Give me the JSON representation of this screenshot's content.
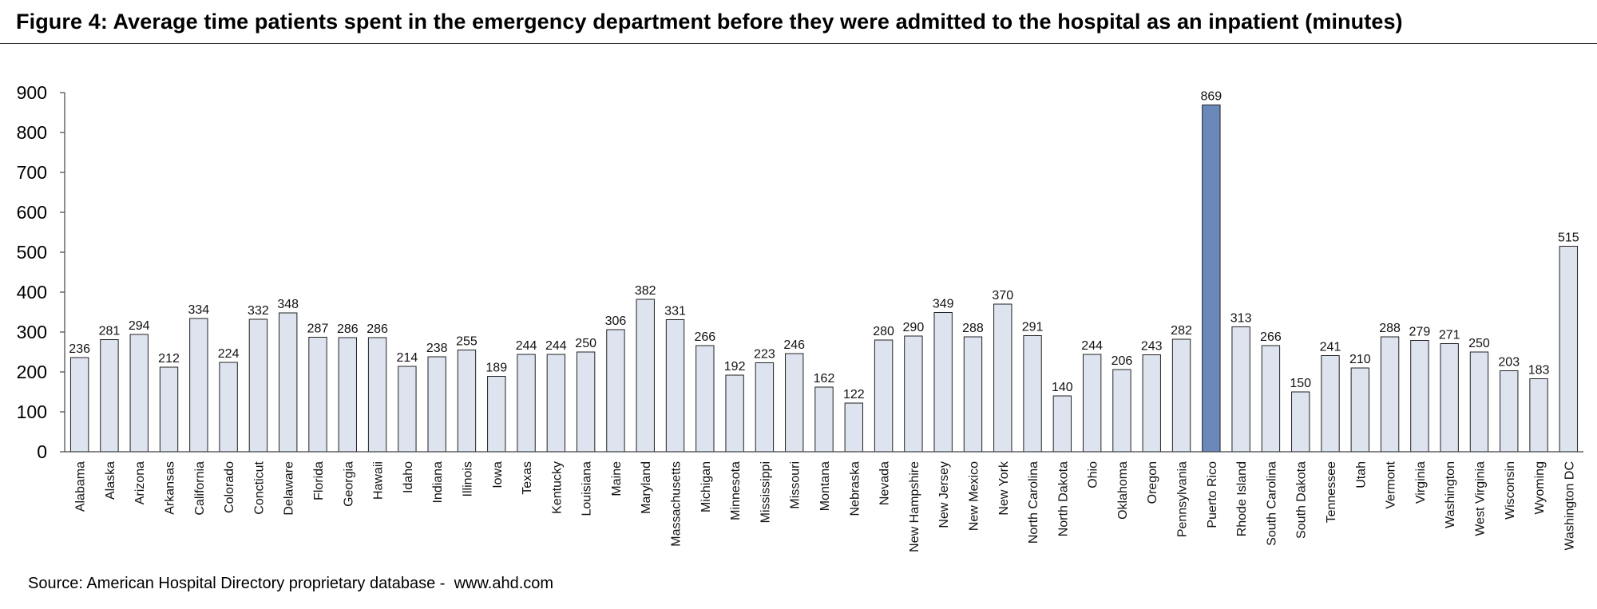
{
  "figure": {
    "title": "Figure 4: Average time patients spent in the emergency department before they were admitted to the hospital as an inpatient (minutes)",
    "source": "Source: American Hospital Directory proprietary database -  www.ahd.com"
  },
  "colors": {
    "bar_fill": "#dde3ef",
    "bar_highlight": "#6b88bb",
    "bar_stroke": "#222222",
    "axis": "#444444"
  },
  "chart_data": {
    "type": "bar",
    "title": "Figure 4: Average time patients spent in the emergency department before they were admitted to the hospital as an inpatient (minutes)",
    "xlabel": "",
    "ylabel": "",
    "ylim": [
      0,
      900
    ],
    "yticks": [
      0,
      100,
      200,
      300,
      400,
      500,
      600,
      700,
      800,
      900
    ],
    "grid": false,
    "legend": "none",
    "highlight_category": "Puerto Rico",
    "categories": [
      "Alabama",
      "Alaska",
      "Arizona",
      "Arkansas",
      "California",
      "Colorado",
      "Concticut",
      "Delaware",
      "Florida",
      "Georgia",
      "Hawaii",
      "Idaho",
      "Indiana",
      "Illinois",
      "Iowa",
      "Texas",
      "Kentucky",
      "Louisiana",
      "Maine",
      "Maryland",
      "Massachusetts",
      "Michigan",
      "Minnesota",
      "Mississippi",
      "Missouri",
      "Montana",
      "Nebraska",
      "Nevada",
      "New Hampshire",
      "New Jersey",
      "New Mexico",
      "New York",
      "North Carolina",
      "North Dakota",
      "Ohio",
      "Oklahoma",
      "Oregon",
      "Pennsylvania",
      "Puerto Rico",
      "Rhode Island",
      "South Carolina",
      "South Dakota",
      "Tennessee",
      "Utah",
      "Vermont",
      "Virginia",
      "Washington",
      "West Virginia",
      "Wisconsin",
      "Wyoming",
      "Washington DC"
    ],
    "values": [
      236,
      281,
      294,
      212,
      334,
      224,
      332,
      348,
      287,
      286,
      286,
      214,
      238,
      255,
      189,
      244,
      244,
      250,
      306,
      382,
      331,
      266,
      192,
      223,
      246,
      162,
      122,
      280,
      290,
      349,
      288,
      370,
      291,
      140,
      244,
      206,
      243,
      282,
      869,
      313,
      266,
      150,
      241,
      210,
      288,
      279,
      271,
      250,
      203,
      183,
      515
    ]
  }
}
